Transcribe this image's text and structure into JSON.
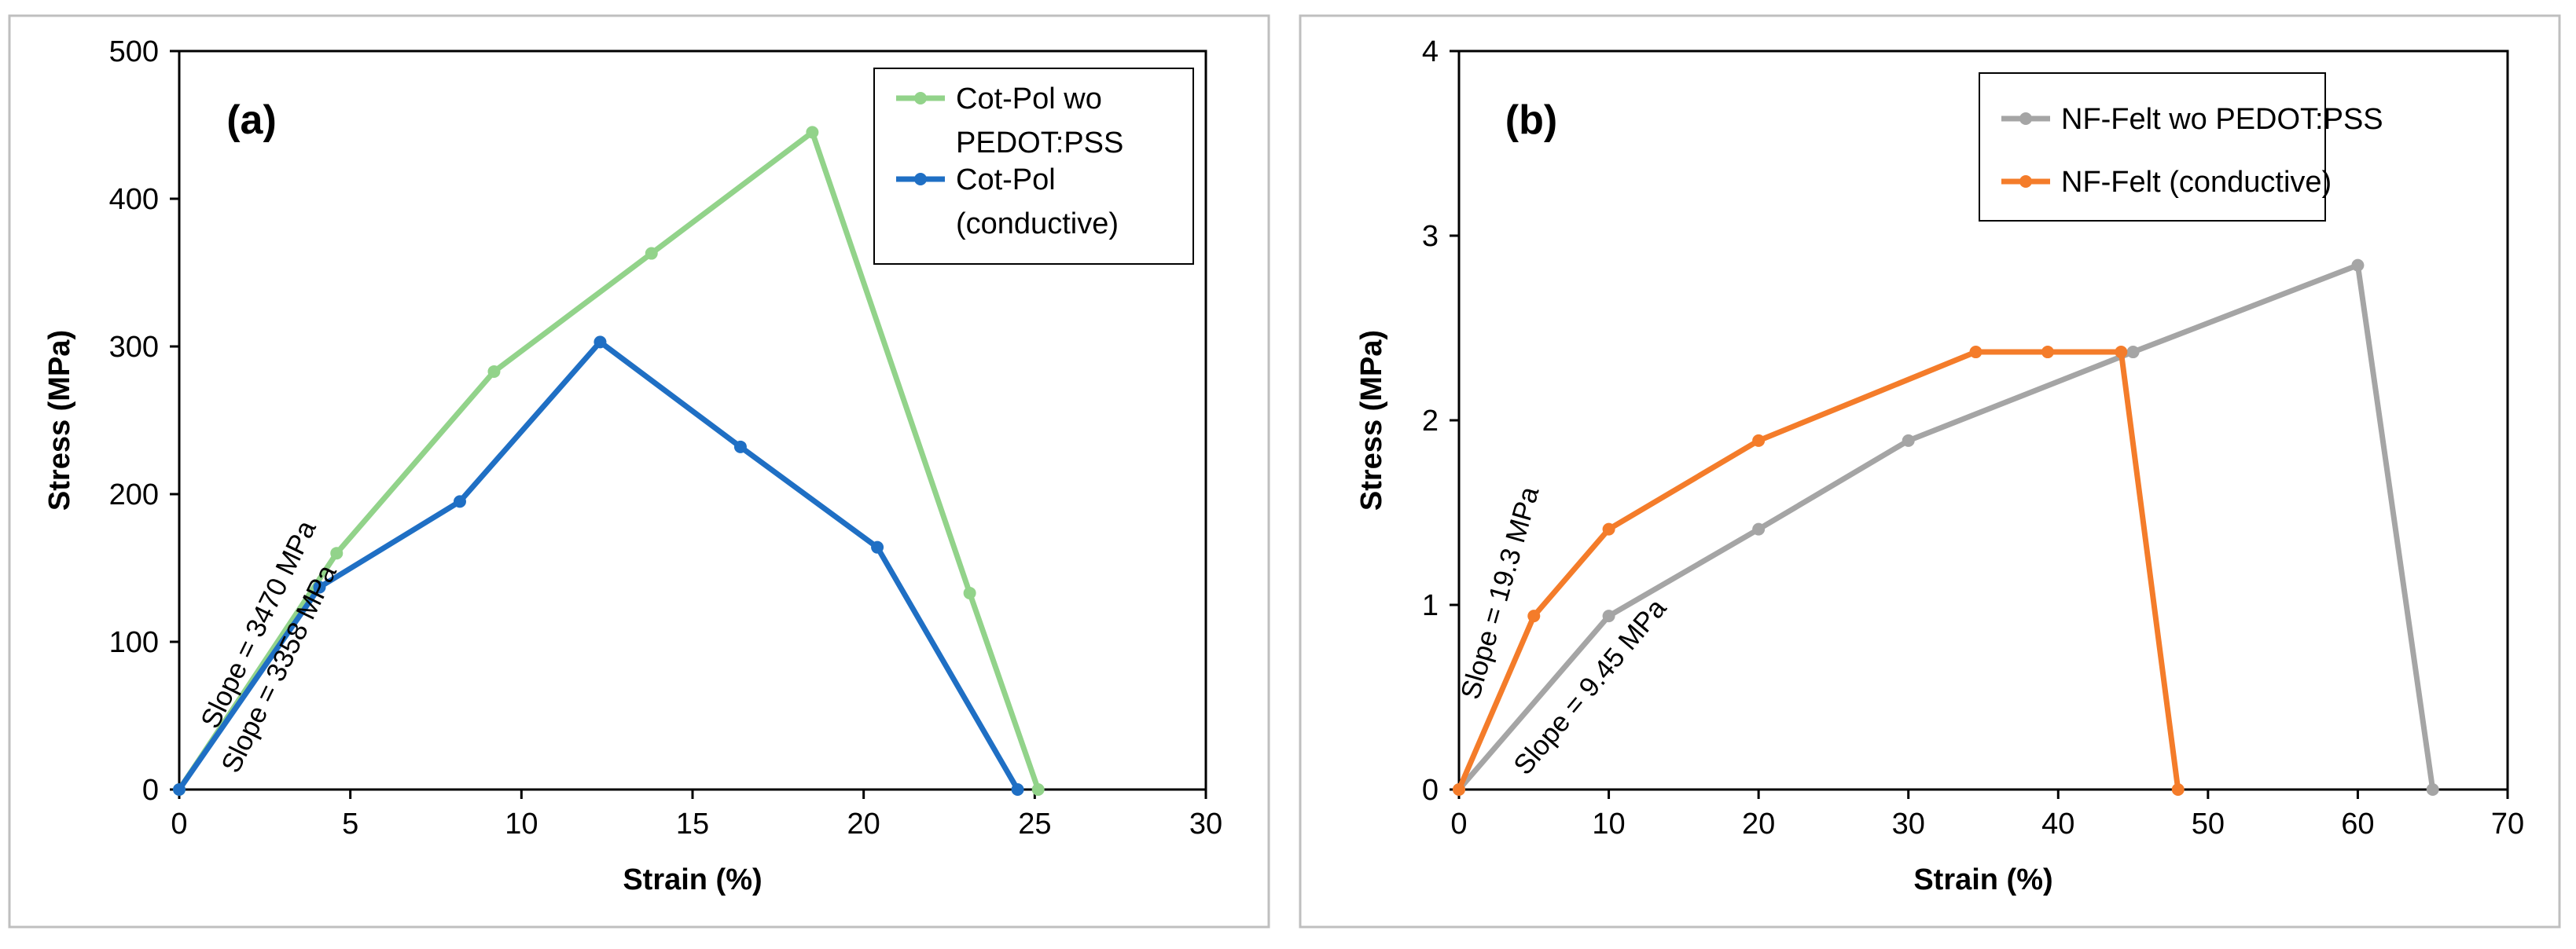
{
  "chart_data": [
    {
      "type": "line",
      "panel_label": "(a)",
      "xlabel": "Strain (%)",
      "ylabel": "Stress (MPa)",
      "xlim": [
        0,
        30
      ],
      "ylim": [
        0,
        500
      ],
      "xticks": [
        0,
        5,
        10,
        15,
        20,
        25,
        30
      ],
      "yticks": [
        0,
        100,
        200,
        300,
        400,
        500
      ],
      "grid": false,
      "legend_position": "top-right",
      "series": [
        {
          "name_lines": [
            "Cot-Pol wo",
            "PEDOT:PSS"
          ],
          "color": "#92d38a",
          "x": [
            0,
            4.6,
            9.2,
            13.8,
            18.5,
            23.1,
            25.1
          ],
          "y": [
            0,
            160,
            283,
            363,
            445,
            133,
            0
          ]
        },
        {
          "name_lines": [
            "Cot-Pol",
            "(conductive)"
          ],
          "color": "#1f6fc4",
          "x": [
            0,
            4.1,
            8.2,
            12.3,
            16.4,
            20.4,
            24.5
          ],
          "y": [
            0,
            137,
            195,
            303,
            232,
            164,
            0
          ]
        }
      ],
      "annotations": [
        {
          "text": "Slope = 3470 MPa",
          "x": 1.1,
          "y": 40,
          "angle": -64
        },
        {
          "text": "Slope = 3358 MPa",
          "x": 1.7,
          "y": 10,
          "angle": -64
        }
      ]
    },
    {
      "type": "line",
      "panel_label": "(b)",
      "xlabel": "Strain (%)",
      "ylabel": "Stress (MPa)",
      "xlim": [
        0,
        70
      ],
      "ylim": [
        0,
        4
      ],
      "xticks": [
        0,
        10,
        20,
        30,
        40,
        50,
        60,
        70
      ],
      "yticks": [
        0,
        1,
        2,
        3,
        4
      ],
      "grid": false,
      "legend_position": "top-right",
      "series": [
        {
          "name_lines": [
            "NF-Felt wo PEDOT:PSS"
          ],
          "color": "#a5a5a5",
          "x": [
            0,
            10,
            20,
            30,
            45,
            60,
            65
          ],
          "y": [
            0,
            0.94,
            1.41,
            1.89,
            2.37,
            2.84,
            0
          ]
        },
        {
          "name_lines": [
            "NF-Felt (conductive)"
          ],
          "color": "#f47c2a",
          "x": [
            0,
            5,
            10,
            20,
            34.5,
            39.3,
            44.2,
            48
          ],
          "y": [
            0,
            0.94,
            1.41,
            1.89,
            2.37,
            2.37,
            2.37,
            0
          ]
        }
      ],
      "annotations": [
        {
          "text": "Slope = 19.3 MPa",
          "x": 1.3,
          "y": 0.48,
          "angle": -74
        },
        {
          "text": "Slope = 9.45 MPa",
          "x": 4.5,
          "y": 0.07,
          "angle": -50
        }
      ]
    }
  ]
}
